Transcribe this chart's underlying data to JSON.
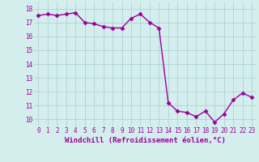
{
  "x": [
    0,
    1,
    2,
    3,
    4,
    5,
    6,
    7,
    8,
    9,
    10,
    11,
    12,
    13,
    14,
    15,
    16,
    17,
    18,
    19,
    20,
    21,
    22,
    23
  ],
  "y": [
    17.5,
    17.6,
    17.5,
    17.6,
    17.7,
    17.0,
    16.9,
    16.7,
    16.6,
    16.6,
    17.3,
    17.6,
    17.0,
    16.6,
    11.2,
    10.6,
    10.5,
    10.2,
    10.6,
    9.8,
    10.4,
    11.4,
    11.9,
    11.6
  ],
  "line_color": "#990099",
  "marker": "D",
  "marker_size": 2.5,
  "bg_color": "#d4eeee",
  "grid_color": "#aacccc",
  "xlabel": "Windchill (Refroidissement éolien,°C)",
  "xlim": [
    -0.5,
    23.5
  ],
  "ylim": [
    9.5,
    18.5
  ],
  "yticks": [
    10,
    11,
    12,
    13,
    14,
    15,
    16,
    17,
    18
  ],
  "xticks": [
    0,
    1,
    2,
    3,
    4,
    5,
    6,
    7,
    8,
    9,
    10,
    11,
    12,
    13,
    14,
    15,
    16,
    17,
    18,
    19,
    20,
    21,
    22,
    23
  ],
  "tick_label_size": 5.5,
  "xlabel_size": 6.5,
  "line_width": 1.0
}
